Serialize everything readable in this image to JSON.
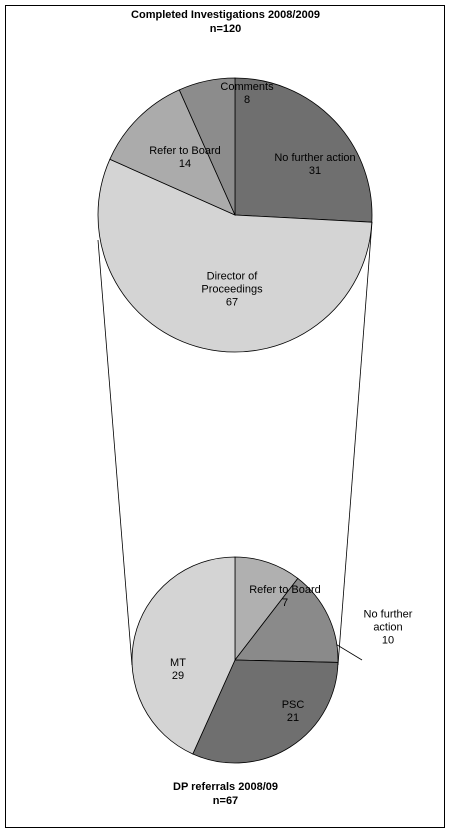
{
  "chart_data": [
    {
      "type": "pie",
      "title": "Completed Investigations 2008/2009",
      "subtitle": "n=120",
      "categories": [
        "No further action",
        "Director of Proceedings",
        "Refer to Board",
        "Comments"
      ],
      "values": [
        31,
        67,
        14,
        8
      ],
      "colors": [
        "#6f6f6f",
        "#d4d4d4",
        "#ababab",
        "#8c8c8c"
      ]
    },
    {
      "type": "pie",
      "title": "DP referrals 2008/09",
      "subtitle": "n=67",
      "categories": [
        "Refer to Board",
        "No further action",
        "PSC",
        "MT"
      ],
      "values": [
        7,
        10,
        21,
        29
      ],
      "colors": [
        "#b0b0b0",
        "#8a8a8a",
        "#6f6f6f",
        "#d4d4d4"
      ]
    }
  ]
}
